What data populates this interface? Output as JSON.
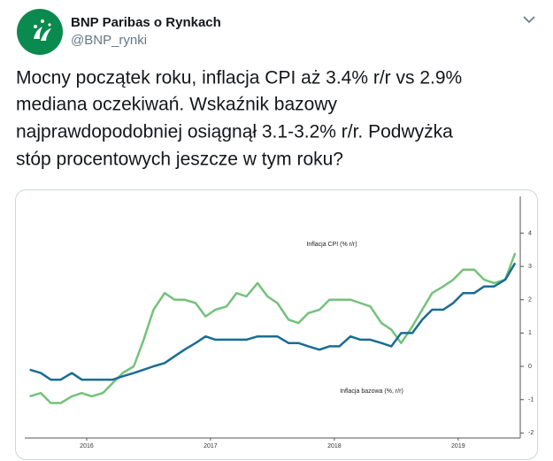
{
  "header": {
    "name": "BNP Paribas o Rynkach",
    "handle": "@BNP_rynki"
  },
  "text": {
    "lines": [
      "Mocny początek roku, inflacja CPI aż 3.4% r/r vs 2.9%",
      "mediana oczekiwań. Wskaźnik bazowy",
      "najprawdopodobniej osiągnął 3.1-3.2% r/r. Podwyżka",
      "stóp procentowych jeszcze w tym roku?"
    ]
  },
  "chart_data": {
    "type": "line",
    "annotations": [
      "Inflacja CPI (% r/r)",
      "Inflacja bazowa (%, r/r)"
    ],
    "x": [
      2016.04,
      2016.13,
      2016.21,
      2016.29,
      2016.38,
      2016.46,
      2016.54,
      2016.63,
      2016.71,
      2016.79,
      2016.88,
      2016.96,
      2017.04,
      2017.13,
      2017.21,
      2017.29,
      2017.38,
      2017.46,
      2017.54,
      2017.63,
      2017.71,
      2017.79,
      2017.88,
      2017.96,
      2018.04,
      2018.13,
      2018.21,
      2018.29,
      2018.38,
      2018.46,
      2018.54,
      2018.63,
      2018.71,
      2018.79,
      2018.88,
      2018.96,
      2019.04,
      2019.13,
      2019.21,
      2019.29,
      2019.38,
      2019.46,
      2019.54,
      2019.63,
      2019.71,
      2019.79,
      2019.88,
      2019.96
    ],
    "series": [
      {
        "color": "#74c27a",
        "values": [
          -0.9,
          -0.8,
          -1.1,
          -1.1,
          -0.9,
          -0.8,
          -0.9,
          -0.8,
          -0.5,
          -0.2,
          0,
          0.8,
          1.7,
          2.2,
          2.0,
          2.0,
          1.9,
          1.5,
          1.7,
          1.8,
          2.2,
          2.1,
          2.5,
          2.1,
          1.9,
          1.4,
          1.3,
          1.6,
          1.7,
          2.0,
          2.0,
          2.0,
          1.9,
          1.8,
          1.3,
          1.1,
          0.7,
          1.2,
          1.7,
          2.2,
          2.4,
          2.6,
          2.9,
          2.9,
          2.6,
          2.5,
          2.6,
          3.4
        ]
      },
      {
        "color": "#1a6c94",
        "values": [
          -0.1,
          -0.2,
          -0.4,
          -0.4,
          -0.2,
          -0.4,
          -0.4,
          -0.4,
          -0.4,
          -0.3,
          -0.2,
          -0.1,
          0.0,
          0.1,
          0.3,
          0.5,
          0.7,
          0.9,
          0.8,
          0.8,
          0.8,
          0.8,
          0.9,
          0.9,
          0.9,
          0.7,
          0.7,
          0.6,
          0.5,
          0.6,
          0.6,
          0.9,
          0.8,
          0.8,
          0.7,
          0.6,
          1.0,
          1.0,
          1.4,
          1.7,
          1.7,
          1.9,
          2.2,
          2.2,
          2.4,
          2.4,
          2.6,
          3.1
        ]
      }
    ],
    "xlim": [
      2016.0,
      2019.98
    ],
    "xticks": [
      {
        "value": 2016.5,
        "label": "2016"
      },
      {
        "value": 2017.5,
        "label": "2017"
      },
      {
        "value": 2018.5,
        "label": "2018"
      },
      {
        "value": 2019.5,
        "label": "2019"
      }
    ],
    "ylim": [
      -2.15,
      5.1
    ],
    "yticks": [
      -2,
      -1,
      0,
      1,
      2,
      3,
      4
    ]
  }
}
